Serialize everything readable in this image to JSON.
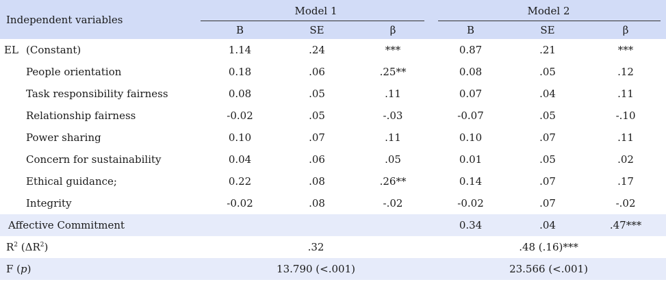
{
  "header": {
    "independent_variables": "Independent variables",
    "model1": "Model 1",
    "model2": "Model 2",
    "col_b": "B",
    "col_se": "SE",
    "col_beta": "β"
  },
  "el_label": "EL",
  "rows": [
    {
      "label": "(Constant)",
      "m1_b": "1.14",
      "m1_se": ".24",
      "m1_beta": "***",
      "m2_b": "0.87",
      "m2_se": ".21",
      "m2_beta": "***"
    },
    {
      "label": "People orientation",
      "m1_b": "0.18",
      "m1_se": ".06",
      "m1_beta": ".25**",
      "m2_b": "0.08",
      "m2_se": ".05",
      "m2_beta": ".12"
    },
    {
      "label": "Task responsibility fairness",
      "m1_b": "0.08",
      "m1_se": ".05",
      "m1_beta": ".11",
      "m2_b": "0.07",
      "m2_se": ".04",
      "m2_beta": ".11"
    },
    {
      "label": "Relationship fairness",
      "m1_b": "-0.02",
      "m1_se": ".05",
      "m1_beta": "-.03",
      "m2_b": "-0.07",
      "m2_se": ".05",
      "m2_beta": "-.10"
    },
    {
      "label": "Power sharing",
      "m1_b": "0.10",
      "m1_se": ".07",
      "m1_beta": ".11",
      "m2_b": "0.10",
      "m2_se": ".07",
      "m2_beta": ".11"
    },
    {
      "label": "Concern for sustainability",
      "m1_b": "0.04",
      "m1_se": ".06",
      "m1_beta": ".05",
      "m2_b": "0.01",
      "m2_se": ".05",
      "m2_beta": ".02"
    },
    {
      "label": "Ethical guidance;",
      "m1_b": "0.22",
      "m1_se": ".08",
      "m1_beta": ".26**",
      "m2_b": "0.14",
      "m2_se": ".07",
      "m2_beta": ".17"
    },
    {
      "label": "Integrity",
      "m1_b": "-0.02",
      "m1_se": ".08",
      "m1_beta": "-.02",
      "m2_b": "-0.02",
      "m2_se": ".07",
      "m2_beta": "-.02"
    }
  ],
  "affective": {
    "label": "Affective Commitment",
    "m2_b": "0.34",
    "m2_se": ".04",
    "m2_beta": ".47***"
  },
  "r2": {
    "label_r": "R",
    "label_sup": "2",
    "label_delta": " (ΔR",
    "label_sup2": "2",
    "label_close": ")",
    "m1": ".32",
    "m2": ".48 (.16)***"
  },
  "f": {
    "label_f": "F (",
    "label_p": "p",
    "label_close": ")",
    "m1": "13.790 (<.001)",
    "m2": "23.566 (<.001)"
  }
}
